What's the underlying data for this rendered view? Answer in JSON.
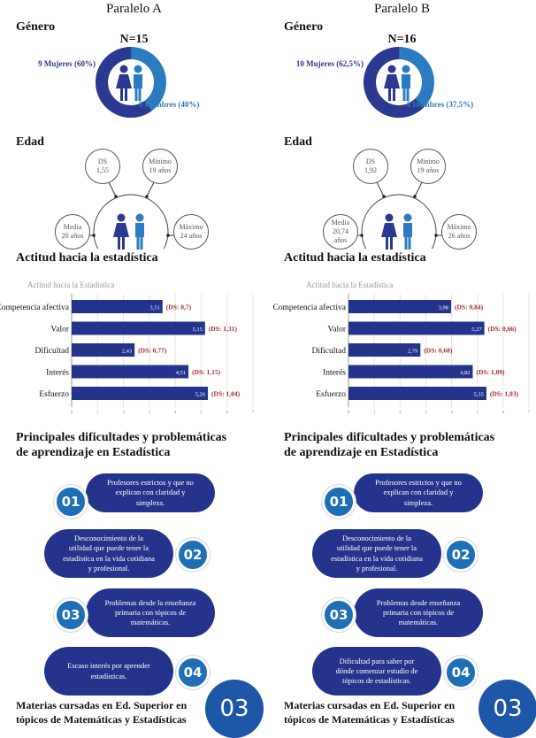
{
  "colors": {
    "women": "#2b3990",
    "men": "#2a7bc0",
    "bar": "#24348c",
    "ds": "#a12a2a"
  },
  "columns": [
    {
      "title": "Paralelo A",
      "gender_heading": "Género",
      "n": "N=15",
      "women_label": "9 Mujeres (60%)",
      "men_label": "6 Hombres (40%)",
      "women_fraction": 0.6,
      "age_heading": "Edad",
      "ds": "DS\n1,55",
      "min": "Mínimo\n19 años",
      "media": "Media\n20 años",
      "max": "Máximo\n24 años",
      "attitude_heading": "Actitud hacia la estadística",
      "difficulties_heading": "Principales dificultades y problemáticas\nde aprendizaje en Estadística",
      "cards": [
        {
          "num": "01",
          "text": "Profesores estrictos y que no\nexplican con claridad y\nsimpleza."
        },
        {
          "num": "02",
          "text": "Desconocimiento de la\nutilidad que puede tener la\nestadística en la vida cotidiana\ny profesional."
        },
        {
          "num": "03",
          "text": "Problemas desde la enseñanza\nprimaria con tópicos de\nmatemáticas."
        },
        {
          "num": "04",
          "text": "Escaso interés por aprender\nestadísticas."
        }
      ],
      "bottom_text": "Materias cursadas en Ed. Superior en\ntópicos de Matemáticas y Estadísticas",
      "bottom_number": "03"
    },
    {
      "title": "Paralelo B",
      "gender_heading": "Género",
      "n": "N=16",
      "women_label": "10 Mujeres (62,5%)",
      "men_label": "6 Hombres (37,5%)",
      "women_fraction": 0.625,
      "age_heading": "Edad",
      "ds": "DS\n1,92",
      "min": "Mínimo\n19 años",
      "media": "Media\n20,74\naños",
      "max": "Máximo\n26 años",
      "attitude_heading": "Actitud hacia la estadística",
      "difficulties_heading": "Principales dificultades y problemáticas\nde aprendizaje en Estadística",
      "cards": [
        {
          "num": "01",
          "text": "Profesores estrictos y que no\nexplican con claridad y\nsimpleza."
        },
        {
          "num": "02",
          "text": "Desconocimiento de la\nutilidad que puede tener la\nestadística en la vida cotidiana\ny profesional."
        },
        {
          "num": "03",
          "text": "Problemas desde enseñanza\nprimaria con tópicos de\nmatemáticas."
        },
        {
          "num": "04",
          "text": "Dificultad para saber por\ndónde comenzar estudio de\ntópicos de estadísticas."
        }
      ],
      "bottom_text": "Materias cursadas en Ed. Superior en\ntópicos de Matemáticas y Estadísticas",
      "bottom_number": "03"
    }
  ],
  "chart_data": [
    {
      "type": "bar",
      "orientation": "horizontal",
      "title": "Actitud hacia la Estadística",
      "categories": [
        "Competencia afectiva",
        "Valor",
        "Dificultad",
        "Interés",
        "Esfuerzo"
      ],
      "values": [
        3.51,
        5.15,
        2.43,
        4.51,
        5.26
      ],
      "value_labels": [
        "3,51",
        "5,15",
        "2,43",
        "4,51",
        "5,26"
      ],
      "ds_labels": [
        "(DS: 0,7)",
        "(DS: 1,31)",
        "(DS: 0,77)",
        "(DS: 1,15)",
        "(DS: 1,04)"
      ],
      "xlim": [
        0,
        7
      ],
      "ticks": [
        "0",
        "1",
        "2",
        "3",
        "4",
        "5",
        "6",
        "7"
      ],
      "grid": true
    },
    {
      "type": "bar",
      "orientation": "horizontal",
      "title": "Actitud hacia la Estadística",
      "categories": [
        "Competencia afectiva",
        "Valor",
        "Dificultad",
        "Interés",
        "Esfuerzo"
      ],
      "values": [
        3.98,
        5.27,
        2.79,
        4.82,
        5.35
      ],
      "value_labels": [
        "3,98",
        "5,27",
        "2,79",
        "4,82",
        "5,35"
      ],
      "ds_labels": [
        "(DS: 0,84)",
        "(DS: 0,66)",
        "(DS: 0,68)",
        "(DS: 1,09)",
        "(DS: 1,03)"
      ],
      "xlim": [
        0,
        7
      ],
      "ticks": [
        "0",
        "1",
        "2",
        "3",
        "4",
        "5",
        "6",
        "7"
      ],
      "grid": true
    }
  ]
}
